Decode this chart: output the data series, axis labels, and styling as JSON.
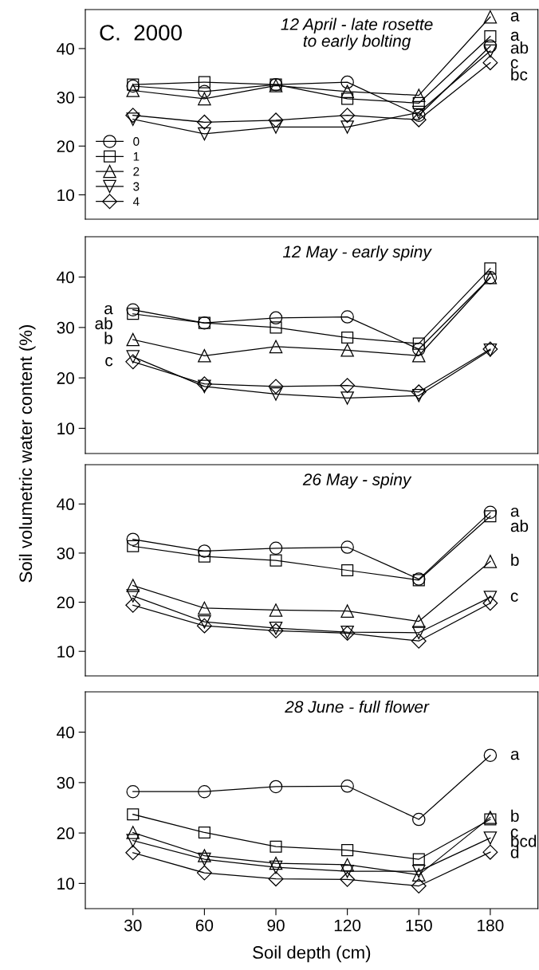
{
  "chart_data": [
    {
      "type": "line",
      "title": "12 April - late rosette\nto early bolting",
      "x": [
        30,
        60,
        90,
        120,
        150,
        180
      ],
      "xlim": [
        10,
        200
      ],
      "ylim": [
        5,
        48
      ],
      "yticks": [
        10,
        20,
        30,
        40
      ],
      "tick_labels": "y",
      "legend": "bottom left",
      "grid": false,
      "annotations": [
        "C.  2000"
      ],
      "series": [
        {
          "name": "0",
          "color": "#000000",
          "marker": "circle",
          "values": [
            32.3,
            31.2,
            32.6,
            33.1,
            26.3,
            40.5
          ],
          "value_labels": [
            null,
            null,
            null,
            null,
            null,
            "ab"
          ]
        },
        {
          "name": "1",
          "color": "#000000",
          "marker": "square",
          "values": [
            32.6,
            33.1,
            32.6,
            29.7,
            28.8,
            42.5
          ],
          "value_labels": [
            null,
            null,
            null,
            null,
            null,
            "a"
          ]
        },
        {
          "name": "2",
          "color": "#000000",
          "marker": "triangle",
          "values": [
            31.4,
            29.7,
            32.4,
            31.2,
            30.4,
            46.5
          ],
          "value_labels": [
            null,
            null,
            null,
            null,
            null,
            "a"
          ]
        },
        {
          "name": "3",
          "color": "#000000",
          "marker": "triangle_down",
          "values": [
            25.5,
            22.5,
            23.9,
            23.9,
            26.9,
            39.5
          ],
          "value_labels": [
            null,
            null,
            null,
            null,
            null,
            "c"
          ]
        },
        {
          "name": "4",
          "color": "#000000",
          "marker": "diamond",
          "values": [
            26.3,
            24.9,
            25.3,
            26.3,
            25.4,
            37.1
          ],
          "value_labels": [
            null,
            null,
            null,
            null,
            null,
            "bc"
          ]
        }
      ]
    },
    {
      "type": "line",
      "title": "12 May - early spiny",
      "ylabel": "Soil volumetric water content (%)",
      "x": [
        30,
        60,
        90,
        120,
        150,
        180
      ],
      "xlim": [
        10,
        200
      ],
      "ylim": [
        5,
        48
      ],
      "yticks": [
        10,
        20,
        30,
        40
      ],
      "tick_labels": "y",
      "grid": false,
      "series": [
        {
          "color": "#000000",
          "marker": "circle",
          "values": [
            33.5,
            30.9,
            31.9,
            32.1,
            25.7,
            39.9
          ],
          "value_labels": [
            "a",
            null,
            null,
            null,
            null,
            null
          ]
        },
        {
          "color": "#000000",
          "marker": "square",
          "values": [
            32.7,
            30.9,
            30.0,
            28.0,
            26.8,
            41.7
          ],
          "value_labels": [
            "ab",
            null,
            null,
            null,
            null,
            null
          ]
        },
        {
          "color": "#000000",
          "marker": "triangle",
          "values": [
            27.6,
            24.4,
            26.2,
            25.5,
            24.4,
            39.9
          ],
          "value_labels": [
            "b",
            null,
            null,
            null,
            null,
            null
          ]
        },
        {
          "color": "#000000",
          "marker": "triangle_down",
          "values": [
            24.2,
            18.3,
            16.8,
            16.0,
            16.5,
            25.5
          ]
        },
        {
          "color": "#000000",
          "marker": "diamond",
          "values": [
            23.2,
            18.8,
            18.3,
            18.5,
            17.2,
            25.7
          ],
          "value_labels": [
            "c",
            null,
            null,
            null,
            null,
            null
          ]
        }
      ]
    },
    {
      "type": "line",
      "title": "26 May - spiny",
      "x": [
        30,
        60,
        90,
        120,
        150,
        180
      ],
      "xlim": [
        10,
        200
      ],
      "ylim": [
        5,
        48
      ],
      "yticks": [
        10,
        20,
        30,
        40
      ],
      "tick_labels": "y",
      "grid": false,
      "series": [
        {
          "color": "#000000",
          "marker": "circle",
          "values": [
            32.8,
            30.4,
            31.0,
            31.2,
            24.7,
            38.3
          ],
          "value_labels": [
            null,
            null,
            null,
            null,
            null,
            "a"
          ]
        },
        {
          "color": "#000000",
          "marker": "square",
          "values": [
            31.4,
            29.3,
            28.5,
            26.5,
            24.5,
            37.5
          ],
          "value_labels": [
            null,
            null,
            null,
            null,
            null,
            "ab"
          ]
        },
        {
          "color": "#000000",
          "marker": "triangle",
          "values": [
            23.4,
            18.8,
            18.4,
            18.2,
            16.1,
            28.3
          ],
          "value_labels": [
            null,
            null,
            null,
            null,
            null,
            "b"
          ]
        },
        {
          "color": "#000000",
          "marker": "triangle_down",
          "values": [
            21.3,
            16.0,
            14.7,
            13.9,
            13.8,
            21.0
          ],
          "value_labels": [
            null,
            null,
            null,
            null,
            null,
            "c"
          ]
        },
        {
          "color": "#000000",
          "marker": "diamond",
          "values": [
            19.4,
            15.2,
            14.2,
            13.7,
            12.1,
            19.8
          ]
        }
      ]
    },
    {
      "type": "line",
      "title": "28 June - full flower",
      "xlabel": "Soil depth (cm)",
      "x": [
        30,
        60,
        90,
        120,
        150,
        180
      ],
      "xlim": [
        10,
        200
      ],
      "xticks": [
        30,
        60,
        90,
        120,
        150,
        180
      ],
      "ylim": [
        5,
        48
      ],
      "yticks": [
        10,
        20,
        30,
        40
      ],
      "grid": false,
      "series": [
        {
          "color": "#000000",
          "marker": "circle",
          "values": [
            28.2,
            28.2,
            29.2,
            29.3,
            22.7,
            35.4
          ],
          "value_labels": [
            null,
            null,
            null,
            null,
            null,
            "a"
          ]
        },
        {
          "color": "#000000",
          "marker": "square",
          "values": [
            23.7,
            20.1,
            17.3,
            16.6,
            14.8,
            22.7
          ],
          "value_labels": [
            null,
            null,
            null,
            null,
            null,
            "c"
          ]
        },
        {
          "color": "#000000",
          "marker": "triangle",
          "values": [
            20.1,
            15.5,
            14.0,
            13.7,
            11.7,
            23.1
          ],
          "value_labels": [
            null,
            null,
            null,
            null,
            null,
            "b"
          ]
        },
        {
          "color": "#000000",
          "marker": "triangle_down",
          "values": [
            18.5,
            14.8,
            13.2,
            12.4,
            12.4,
            19.0
          ],
          "value_labels": [
            null,
            null,
            null,
            null,
            null,
            "bcd"
          ]
        },
        {
          "color": "#000000",
          "marker": "diamond",
          "values": [
            16.1,
            12.1,
            10.9,
            10.8,
            9.5,
            16.2
          ],
          "value_labels": [
            null,
            null,
            null,
            null,
            null,
            "d"
          ]
        }
      ]
    }
  ]
}
